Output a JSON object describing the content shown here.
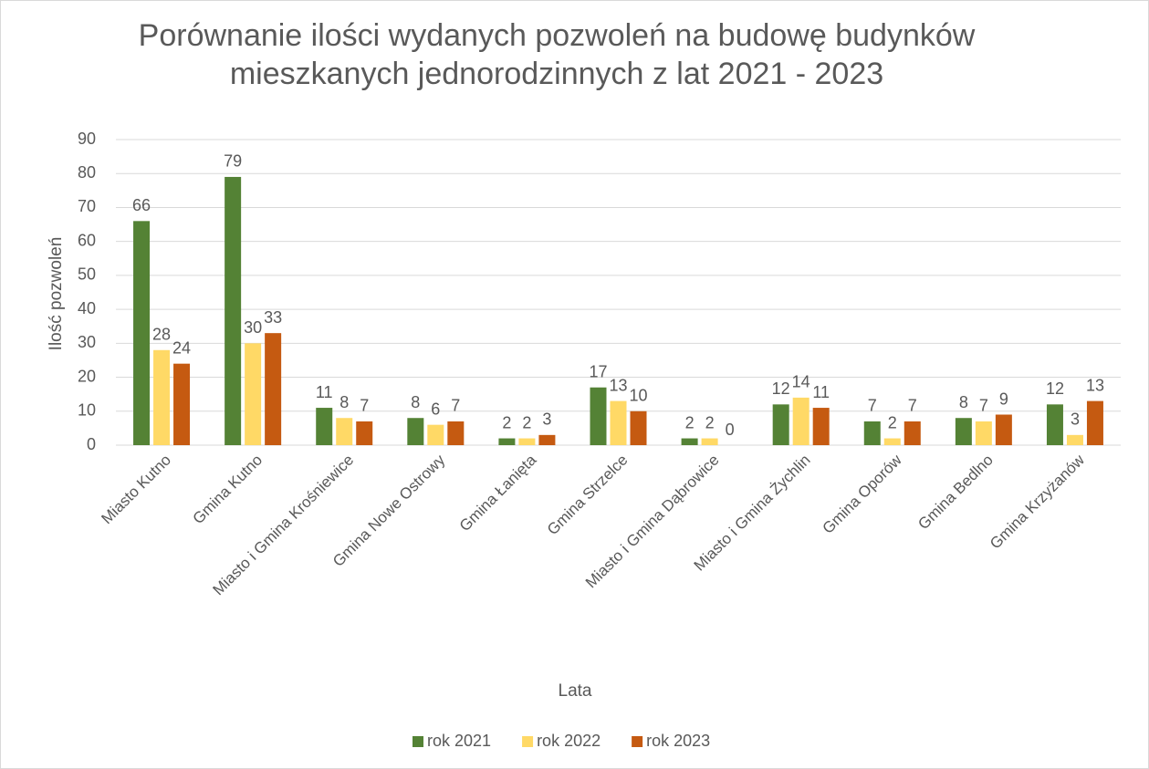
{
  "chart_data": {
    "type": "bar",
    "title": "Porównanie ilości wydanych pozwoleń na budowę budynków mieszkanych jednorodzinnych z lat 2021 - 2023",
    "x_label": "Lata",
    "y_label": "Ilość pozwoleń",
    "categories": [
      "Miasto Kutno",
      "Gmina Kutno",
      "Miasto i Gmina Krośniewice",
      "Gmina Nowe Ostrowy",
      "Gmina Łanięta",
      "Gmina Strzelce",
      "Miasto i Gmina Dąbrowice",
      "Miasto i Gmina Żychlin",
      "Gmina Oporów",
      "Gmina Bedlno",
      "Gmina Krzyżanów"
    ],
    "series": [
      {
        "name": "rok 2021",
        "color": "#548235",
        "values": [
          66,
          79,
          11,
          8,
          2,
          17,
          2,
          12,
          7,
          8,
          12
        ]
      },
      {
        "name": "rok 2022",
        "color": "#ffd966",
        "values": [
          28,
          30,
          8,
          6,
          2,
          13,
          2,
          14,
          2,
          7,
          3
        ]
      },
      {
        "name": "rok 2023",
        "color": "#c55a11",
        "values": [
          24,
          33,
          7,
          7,
          3,
          10,
          0,
          11,
          7,
          9,
          13
        ]
      }
    ],
    "ylim": [
      0,
      90
    ],
    "yticks": [
      0,
      10,
      20,
      30,
      40,
      50,
      60,
      70,
      80,
      90
    ],
    "grid": true,
    "legend": "bottom"
  }
}
